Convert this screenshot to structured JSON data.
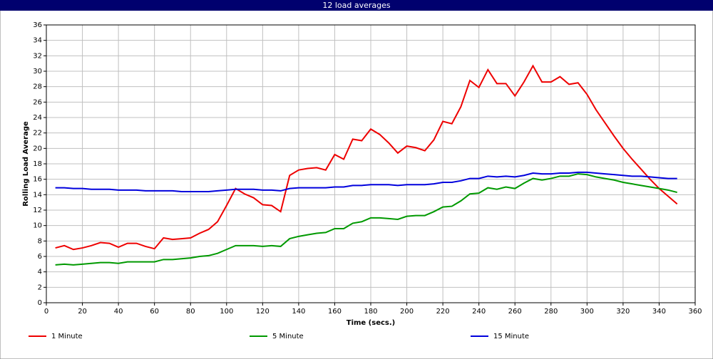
{
  "chart_data": {
    "type": "line",
    "title": "12 load averages",
    "x_label": "Time (secs.)",
    "y_label": "Rolling Load Average",
    "x": [
      5,
      10,
      15,
      20,
      25,
      30,
      35,
      40,
      45,
      50,
      55,
      60,
      65,
      70,
      75,
      80,
      85,
      90,
      95,
      100,
      105,
      110,
      115,
      120,
      125,
      130,
      135,
      140,
      145,
      150,
      155,
      160,
      165,
      170,
      175,
      180,
      185,
      190,
      195,
      200,
      205,
      210,
      215,
      220,
      225,
      230,
      235,
      240,
      245,
      250,
      255,
      260,
      265,
      270,
      275,
      280,
      285,
      290,
      295,
      300,
      305,
      310,
      315,
      320,
      325,
      330,
      335,
      340,
      345,
      350
    ],
    "series": [
      {
        "name": "1 Minute",
        "color": "#ee0000",
        "values": [
          7.1,
          7.4,
          6.9,
          7.1,
          7.4,
          7.8,
          7.7,
          7.2,
          7.7,
          7.7,
          7.3,
          7.0,
          8.4,
          8.2,
          8.3,
          8.4,
          9.0,
          9.5,
          10.5,
          12.6,
          14.8,
          14.1,
          13.6,
          12.7,
          12.6,
          11.8,
          16.5,
          17.2,
          17.4,
          17.5,
          17.2,
          19.2,
          18.6,
          21.2,
          21.0,
          22.5,
          21.8,
          20.7,
          19.4,
          20.3,
          20.1,
          19.7,
          21.1,
          23.5,
          23.2,
          25.4,
          28.8,
          27.9,
          30.2,
          28.4,
          28.4,
          26.8,
          28.6,
          30.7,
          28.6,
          28.6,
          29.3,
          28.3,
          28.5,
          27.0,
          25.0,
          23.3,
          21.6,
          20.0,
          18.6,
          17.3,
          16.0,
          14.8,
          13.8,
          12.8
        ]
      },
      {
        "name": "5 Minute",
        "color": "#009900",
        "values": [
          4.9,
          5.0,
          4.9,
          5.0,
          5.1,
          5.2,
          5.2,
          5.1,
          5.3,
          5.3,
          5.3,
          5.3,
          5.6,
          5.6,
          5.7,
          5.8,
          6.0,
          6.1,
          6.4,
          6.9,
          7.4,
          7.4,
          7.4,
          7.3,
          7.4,
          7.3,
          8.3,
          8.6,
          8.8,
          9.0,
          9.1,
          9.6,
          9.6,
          10.3,
          10.5,
          11.0,
          11.0,
          10.9,
          10.8,
          11.2,
          11.3,
          11.3,
          11.8,
          12.4,
          12.5,
          13.2,
          14.1,
          14.2,
          14.9,
          14.7,
          15.0,
          14.8,
          15.5,
          16.1,
          15.9,
          16.1,
          16.4,
          16.4,
          16.7,
          16.6,
          16.3,
          16.1,
          15.9,
          15.6,
          15.4,
          15.2,
          15.0,
          14.8,
          14.6,
          14.3
        ]
      },
      {
        "name": "15 Minute",
        "color": "#0000dd",
        "values": [
          14.9,
          14.9,
          14.8,
          14.8,
          14.7,
          14.7,
          14.7,
          14.6,
          14.6,
          14.6,
          14.5,
          14.5,
          14.5,
          14.5,
          14.4,
          14.4,
          14.4,
          14.4,
          14.5,
          14.6,
          14.7,
          14.7,
          14.7,
          14.6,
          14.6,
          14.5,
          14.8,
          14.9,
          14.9,
          14.9,
          14.9,
          15.0,
          15.0,
          15.2,
          15.2,
          15.3,
          15.3,
          15.3,
          15.2,
          15.3,
          15.3,
          15.3,
          15.4,
          15.6,
          15.6,
          15.8,
          16.1,
          16.1,
          16.4,
          16.3,
          16.4,
          16.3,
          16.5,
          16.8,
          16.7,
          16.7,
          16.8,
          16.8,
          16.9,
          16.9,
          16.8,
          16.7,
          16.6,
          16.5,
          16.4,
          16.4,
          16.3,
          16.2,
          16.1,
          16.1
        ]
      }
    ],
    "xlim": [
      0,
      360
    ],
    "xticks": [
      0,
      20,
      40,
      60,
      80,
      100,
      120,
      140,
      160,
      180,
      200,
      220,
      240,
      260,
      280,
      300,
      320,
      340,
      360
    ],
    "ylim": [
      0,
      36
    ],
    "yticks": [
      0,
      2,
      4,
      6,
      8,
      10,
      12,
      14,
      16,
      18,
      20,
      22,
      24,
      26,
      28,
      30,
      32,
      34,
      36
    ],
    "grid": true,
    "legend": "bottom"
  }
}
